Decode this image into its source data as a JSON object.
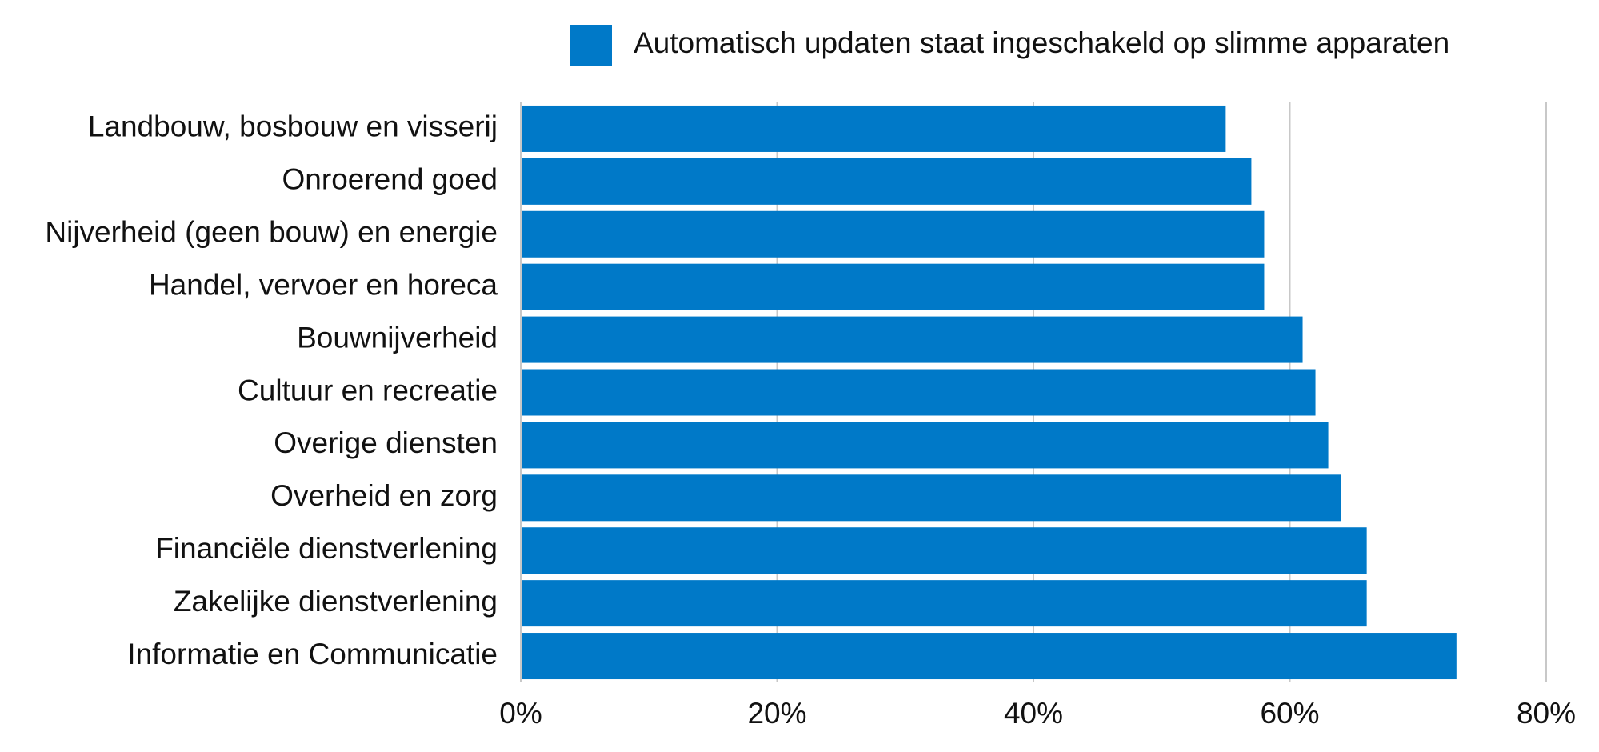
{
  "chart_data": {
    "type": "hbar",
    "categories": [
      "Landbouw, bosbouw en visserij",
      "Onroerend goed",
      "Nijverheid (geen bouw) en energie",
      "Handel, vervoer en horeca",
      "Bouwnijverheid",
      "Cultuur en recreatie",
      "Overige diensten",
      "Overheid en zorg",
      "Financiële dienstverlening",
      "Zakelijke dienstverlening",
      "Informatie en Communicatie"
    ],
    "series": [
      {
        "name": "Automatisch updaten staat ingeschakeld op slimme apparaten",
        "color": "#0079c8",
        "values": [
          55,
          57,
          58,
          58,
          61,
          62,
          63,
          64,
          66,
          66,
          73
        ]
      }
    ],
    "xlim": [
      0,
      80
    ],
    "xticks": [
      {
        "value": 0,
        "label": "0%"
      },
      {
        "value": 20,
        "label": "20%"
      },
      {
        "value": 40,
        "label": "40%"
      },
      {
        "value": 60,
        "label": "60%"
      },
      {
        "value": 80,
        "label": "80%"
      }
    ],
    "grid": true
  }
}
